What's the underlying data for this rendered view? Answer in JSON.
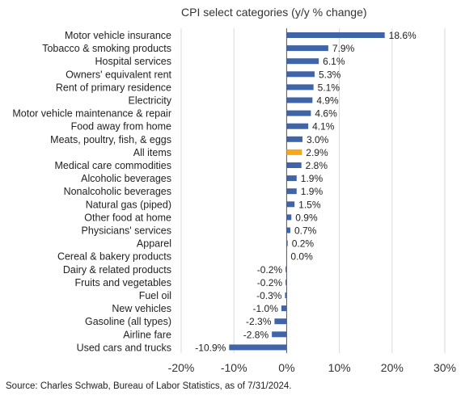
{
  "chart_data": {
    "type": "bar",
    "orientation": "horizontal",
    "title": "CPI select categories (y/y % change)",
    "xlim": [
      -20,
      30
    ],
    "xticks": [
      -20,
      -10,
      0,
      10,
      20,
      30
    ],
    "xtick_labels": [
      "-20%",
      "-10%",
      "0%",
      "10%",
      "20%",
      "30%"
    ],
    "grid": true,
    "categories": [
      "Motor vehicle insurance",
      "Tobacco & smoking products",
      "Hospital services",
      "Owners' equivalent rent",
      "Rent of primary residence",
      "Electricity",
      "Motor vehicle maintenance & repair",
      "Food away from home",
      "Meats, poultry, fish, & eggs",
      "All items",
      "Medical care commodities",
      "Alcoholic beverages",
      "Nonalcoholic beverages",
      "Natural gas (piped)",
      "Other food at home",
      "Physicians' services",
      "Apparel",
      "Cereal & bakery products",
      "Dairy & related products",
      "Fruits and vegetables",
      "Fuel oil",
      "New vehicles",
      "Gasoline (all types)",
      "Airline fare",
      "Used cars and trucks"
    ],
    "values": [
      18.6,
      7.9,
      6.1,
      5.3,
      5.1,
      4.9,
      4.6,
      4.1,
      3.0,
      2.9,
      2.8,
      1.9,
      1.9,
      1.5,
      0.9,
      0.7,
      0.2,
      0.0,
      -0.2,
      -0.2,
      -0.3,
      -1.0,
      -2.3,
      -2.8,
      -10.9
    ],
    "value_labels": [
      "18.6%",
      "7.9%",
      "6.1%",
      "5.3%",
      "5.1%",
      "4.9%",
      "4.6%",
      "4.1%",
      "3.0%",
      "2.9%",
      "2.8%",
      "1.9%",
      "1.9%",
      "1.5%",
      "0.9%",
      "0.7%",
      "0.2%",
      "0.0%",
      "-0.2%",
      "-0.2%",
      "-0.3%",
      "-1.0%",
      "-2.3%",
      "-2.8%",
      "-10.9%"
    ],
    "highlight_category": "All items",
    "colors": {
      "bar": "#3f64a8",
      "highlight": "#f5a81c",
      "grid": "#d9d9d9",
      "axis": "#555555"
    }
  },
  "source": "Source: Charles Schwab, Bureau of Labor Statistics, as of 7/31/2024."
}
